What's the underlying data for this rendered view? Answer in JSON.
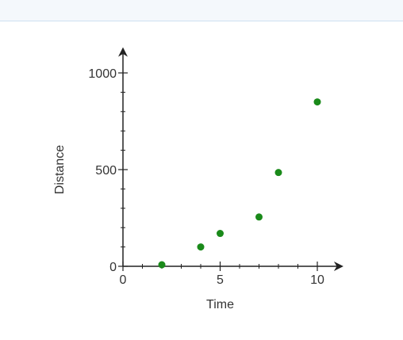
{
  "chart_data": {
    "type": "scatter",
    "title": "",
    "xlabel": "Time",
    "ylabel": "Distance",
    "xlim": [
      0,
      11
    ],
    "ylim": [
      0,
      1000
    ],
    "x_ticks": [
      0,
      5,
      10
    ],
    "x_tick_labels": [
      "0",
      "5",
      "10"
    ],
    "y_ticks": [
      0,
      500,
      1000
    ],
    "y_tick_labels": [
      "0",
      "500",
      "1000"
    ],
    "x_minor_step": 1,
    "y_minor_step": 100,
    "grid": false,
    "series": [
      {
        "points": [
          {
            "x": 2,
            "y": 8
          },
          {
            "x": 4,
            "y": 100
          },
          {
            "x": 5,
            "y": 170
          },
          {
            "x": 7,
            "y": 255
          },
          {
            "x": 8,
            "y": 485
          },
          {
            "x": 10,
            "y": 850
          }
        ]
      }
    ],
    "colors": {
      "point": "#1a8a1a",
      "axis": "#333333"
    }
  }
}
